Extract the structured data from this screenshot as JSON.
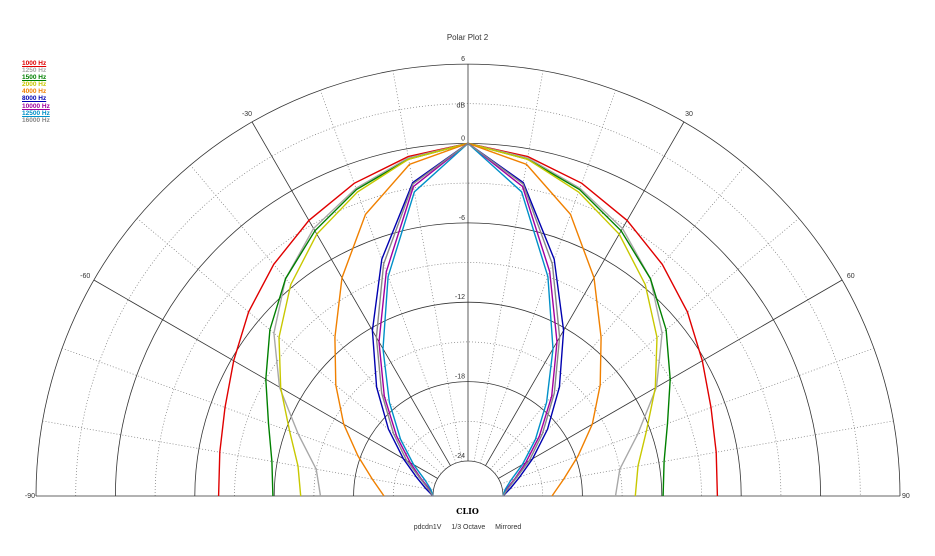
{
  "chart_data": {
    "type": "polar",
    "title": "Polar Plot 2",
    "brand": "CLIO",
    "footer": [
      "pdcdn1V",
      "1/3 Octave",
      "Mirrored"
    ],
    "radial_unit": "dB",
    "radial_ticks": [
      "6",
      "0",
      "-6",
      "-12",
      "-18",
      "-24"
    ],
    "rlim": [
      -24,
      6
    ],
    "angle_range_deg": [
      -90,
      90
    ],
    "angle_ticks": [
      {
        "deg": -30,
        "label": "-30"
      },
      {
        "deg": 30,
        "label": "30"
      },
      {
        "deg": -60,
        "label": "-60"
      },
      {
        "deg": 60,
        "label": "60"
      },
      {
        "deg": -90,
        "label": "-90"
      },
      {
        "deg": 90,
        "label": "90"
      }
    ],
    "grid": true,
    "legend_position": "top-left",
    "series": [
      {
        "name": "1000 Hz",
        "color": "#e00000",
        "underline": true,
        "angles": [
          0,
          10,
          20,
          30,
          40,
          50,
          60,
          70,
          80,
          90
        ],
        "values": [
          0,
          -0.6,
          -1.5,
          -2.6,
          -3.8,
          -5.0,
          -6.2,
          -7.1,
          -7.6,
          -7.8
        ]
      },
      {
        "name": "1250 Hz",
        "color": "#a8a8a8",
        "underline": false,
        "angles": [
          0,
          10,
          20,
          30,
          40,
          50,
          60,
          70,
          80,
          90
        ],
        "values": [
          0,
          -0.7,
          -1.9,
          -3.3,
          -5.2,
          -7.5,
          -10.2,
          -13.0,
          -15.0,
          -15.5
        ]
      },
      {
        "name": "1500 Hz",
        "color": "#008000",
        "underline": true,
        "angles": [
          0,
          10,
          20,
          30,
          40,
          50,
          60,
          70,
          80,
          90
        ],
        "values": [
          0,
          -0.8,
          -2.0,
          -3.5,
          -5.2,
          -7.1,
          -9.0,
          -10.6,
          -11.6,
          -11.9
        ]
      },
      {
        "name": "2000 Hz",
        "color": "#c8c800",
        "underline": false,
        "angles": [
          0,
          10,
          20,
          30,
          40,
          50,
          60,
          70,
          80,
          90
        ],
        "values": [
          0,
          -0.8,
          -2.2,
          -3.8,
          -5.8,
          -8.0,
          -10.3,
          -12.3,
          -13.6,
          -14.0
        ]
      },
      {
        "name": "4000 Hz",
        "color": "#f08000",
        "underline": false,
        "angles": [
          0,
          10,
          20,
          30,
          40,
          50,
          60,
          70,
          80,
          90
        ],
        "values": [
          0,
          -1.2,
          -4.0,
          -7.6,
          -11.0,
          -13.6,
          -15.8,
          -17.8,
          -19.3,
          -20.3
        ]
      },
      {
        "name": "8000 Hz",
        "color": "#0000b0",
        "underline": true,
        "angles": [
          0,
          10,
          20,
          30,
          40,
          50,
          60,
          70,
          80,
          90
        ],
        "values": [
          0,
          -2.6,
          -7.6,
          -12.2,
          -15.9,
          -18.8,
          -21.0,
          -22.5,
          -23.4,
          -24.0
        ]
      },
      {
        "name": "10000 Hz",
        "color": "#a000a0",
        "underline": true,
        "angles": [
          0,
          10,
          20,
          30,
          40,
          50,
          60,
          70,
          80,
          90
        ],
        "values": [
          0,
          -2.9,
          -8.6,
          -13.2,
          -16.8,
          -19.6,
          -21.6,
          -22.9,
          -23.7,
          -24.0
        ]
      },
      {
        "name": "12500 Hz",
        "color": "#0090c8",
        "underline": true,
        "angles": [
          0,
          10,
          20,
          30,
          40,
          50,
          60,
          70,
          80,
          90
        ],
        "values": [
          0,
          -3.3,
          -9.0,
          -13.8,
          -17.4,
          -20.0,
          -21.9,
          -23.2,
          -23.8,
          -24.0
        ]
      },
      {
        "name": "16000 Hz",
        "color": "#888888",
        "underline": false,
        "angles": [
          0,
          10,
          20,
          30,
          40,
          50,
          60,
          70,
          80,
          90
        ],
        "values": [
          0,
          -2.7,
          -8.0,
          -12.8,
          -16.5,
          -19.3,
          -21.3,
          -22.8,
          -23.6,
          -24.0
        ]
      }
    ]
  }
}
